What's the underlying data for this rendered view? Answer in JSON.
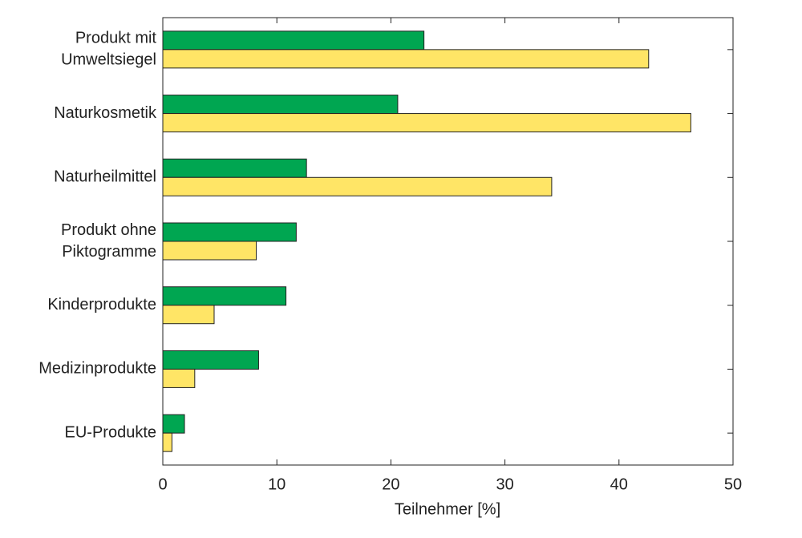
{
  "chart_data": {
    "type": "hbar",
    "categories": [
      [
        "Produkt mit",
        "Umweltsiegel"
      ],
      [
        "Naturkosmetik"
      ],
      [
        "Naturheilmittel"
      ],
      [
        "Produkt ohne",
        "Piktogramme"
      ],
      [
        "Kinderprodukte"
      ],
      [
        "Medizinprodukte"
      ],
      [
        "EU-Produkte"
      ]
    ],
    "series": [
      {
        "color": "#00a651",
        "values": [
          22.9,
          20.6,
          12.6,
          11.7,
          10.8,
          8.4,
          1.9
        ]
      },
      {
        "color": "#ffe566",
        "values": [
          42.6,
          46.3,
          34.1,
          8.2,
          4.5,
          2.8,
          0.8
        ]
      }
    ],
    "xlabel": "Teilnehmer [%]",
    "xlim": [
      0,
      50
    ],
    "xticks": [
      0,
      10,
      20,
      30,
      40,
      50
    ]
  }
}
